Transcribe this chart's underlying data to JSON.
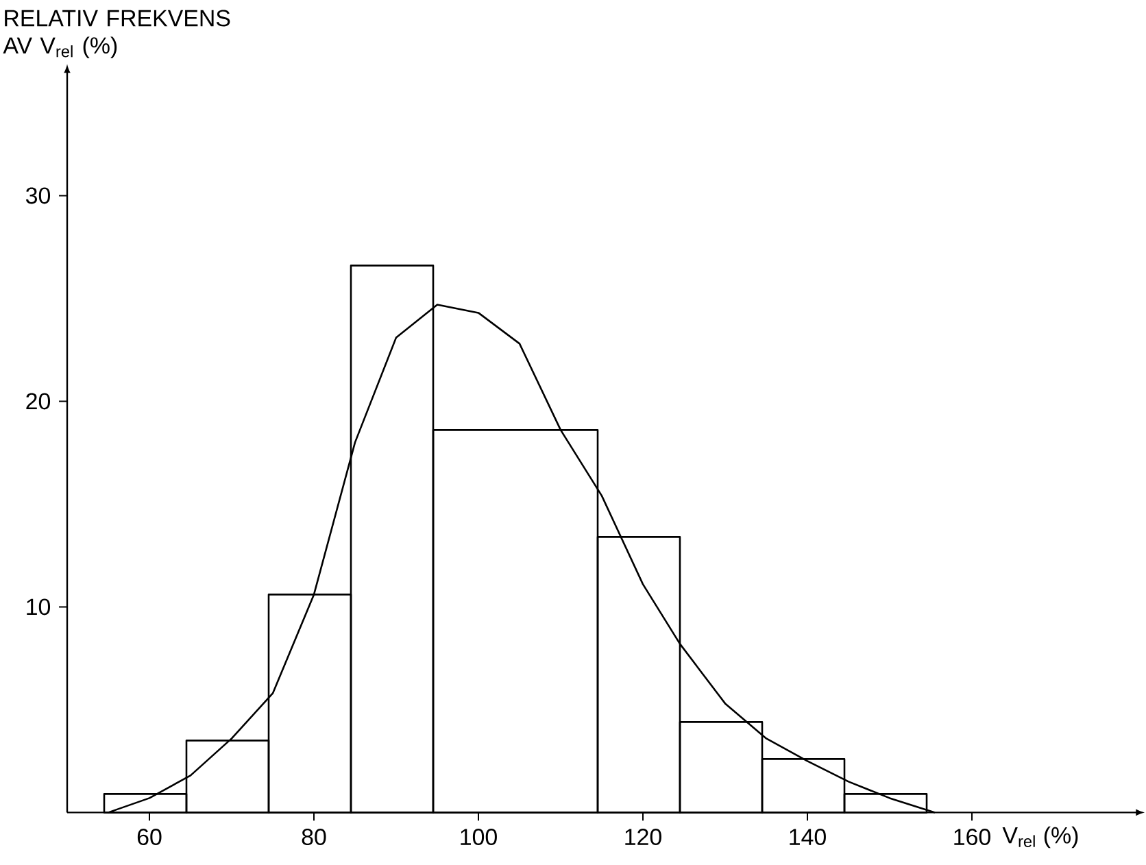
{
  "chart_data": {
    "type": "histogram",
    "xlabel": "V$_{rel}$ (%)",
    "ylabel": "RELATIV FREKVENS AV V$_{rel}$ (%)",
    "color": "#000000",
    "bins": [
      54.5,
      64.5,
      74.5,
      84.5,
      94.5,
      114.5,
      124.5,
      134.5,
      144.5,
      154.5
    ],
    "values": [
      0.9,
      3.5,
      10.6,
      26.6,
      18.6,
      13.4,
      4.4,
      2.6,
      0.9
    ],
    "series": [
      {
        "type": "line",
        "color": "#000000",
        "x": [
          55,
          60,
          65,
          70,
          75,
          80,
          85,
          90,
          95,
          100,
          105,
          110,
          115,
          120,
          124.5,
          130,
          135,
          140,
          145,
          150,
          155.5
        ],
        "values": [
          0,
          0.7,
          1.8,
          3.6,
          5.8,
          10.6,
          18.0,
          23.1,
          24.7,
          24.3,
          22.8,
          18.6,
          15.4,
          11.1,
          8.2,
          5.3,
          3.6,
          2.5,
          1.5,
          0.7,
          0
        ]
      }
    ],
    "xlim": [
      50,
      180
    ],
    "ylim": [
      0,
      36
    ],
    "xticks": [
      60,
      80,
      100,
      120,
      140,
      160
    ],
    "yticks": [
      10,
      20,
      30
    ]
  }
}
